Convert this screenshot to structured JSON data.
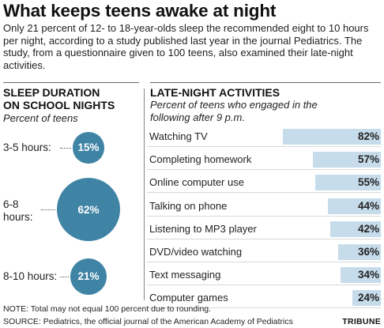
{
  "title": "What keeps teens awake at night",
  "intro": "Only 21 percent of 12- to 18-year-olds sleep the recommended eight to 10 hours per night, according to a study published last year in the journal Pediatrics. The study, from a questionnaire given to 100 teens, also examined their late-night activities.",
  "sleep": {
    "heading": "SLEEP DURATION\nON SCHOOL NIGHTS",
    "subheading": "Percent of teens",
    "items": [
      {
        "label": "3-5 hours:",
        "value_label": "15%"
      },
      {
        "label": "6-8\nhours:",
        "value_label": "62%"
      },
      {
        "label": "8-10 hours:",
        "value_label": "21%"
      }
    ]
  },
  "activities": {
    "heading": "LATE-NIGHT ACTIVITIES",
    "subheading": "Percent of teens who engaged in the\nfollowing after 9 p.m.",
    "items": [
      {
        "label": "Watching TV",
        "value_label": "82%"
      },
      {
        "label": "Completing homework",
        "value_label": "57%"
      },
      {
        "label": "Online computer use",
        "value_label": "55%"
      },
      {
        "label": "Talking on phone",
        "value_label": "44%"
      },
      {
        "label": "Listening to MP3 player",
        "value_label": "42%"
      },
      {
        "label": "DVD/video watching",
        "value_label": "36%"
      },
      {
        "label": "Text messaging",
        "value_label": "34%"
      },
      {
        "label": "Computer games",
        "value_label": "24%"
      }
    ]
  },
  "footer": {
    "note": "NOTE: Total may not equal 100 percent due to rounding.",
    "source": "SOURCE: Pediatrics, the official journal of the American Academy of Pediatrics",
    "brand": "TRIBUNE"
  },
  "colors": {
    "bubble": "#3f84a5",
    "bar": "#c6dcea"
  },
  "chart_data": [
    {
      "type": "bubble",
      "title": "SLEEP DURATION ON SCHOOL NIGHTS",
      "subtitle": "Percent of teens",
      "categories": [
        "3-5 hours",
        "6-8 hours",
        "8-10 hours"
      ],
      "values": [
        15,
        62,
        21
      ]
    },
    {
      "type": "bar",
      "title": "LATE-NIGHT ACTIVITIES",
      "subtitle": "Percent of teens who engaged in the following after 9 p.m.",
      "categories": [
        "Watching TV",
        "Completing homework",
        "Online computer use",
        "Talking on phone",
        "Listening to MP3 player",
        "DVD/video watching",
        "Text messaging",
        "Computer games"
      ],
      "values": [
        82,
        57,
        55,
        44,
        42,
        36,
        34,
        24
      ],
      "ylim": [
        0,
        82
      ]
    }
  ]
}
